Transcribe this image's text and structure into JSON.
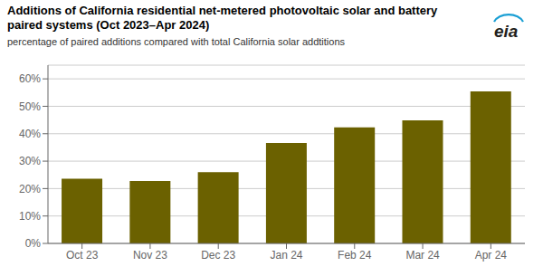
{
  "chart_data": {
    "type": "bar",
    "title": "Additions of California residential net-metered photovoltaic solar and battery paired systems (Oct 2023–Apr 2024)",
    "subtitle": "percentage of paired additions compared with total California solar addtitions",
    "annotations": [
      "eia"
    ],
    "categories": [
      "Oct 23",
      "Nov 23",
      "Dec 23",
      "Jan 24",
      "Feb 24",
      "Mar 24",
      "Apr 24"
    ],
    "values": [
      0.236,
      0.228,
      0.26,
      0.366,
      0.423,
      0.449,
      0.554
    ],
    "color": "#6b6100",
    "ylim": [
      0,
      0.65
    ],
    "yticks": [
      {
        "value": 0.0,
        "label": "0%"
      },
      {
        "value": 0.1,
        "label": "10%"
      },
      {
        "value": 0.2,
        "label": "20%"
      },
      {
        "value": 0.3,
        "label": "30%"
      },
      {
        "value": 0.4,
        "label": "40%"
      },
      {
        "value": 0.5,
        "label": "50%"
      },
      {
        "value": 0.6,
        "label": "60%"
      }
    ],
    "grid": true
  }
}
